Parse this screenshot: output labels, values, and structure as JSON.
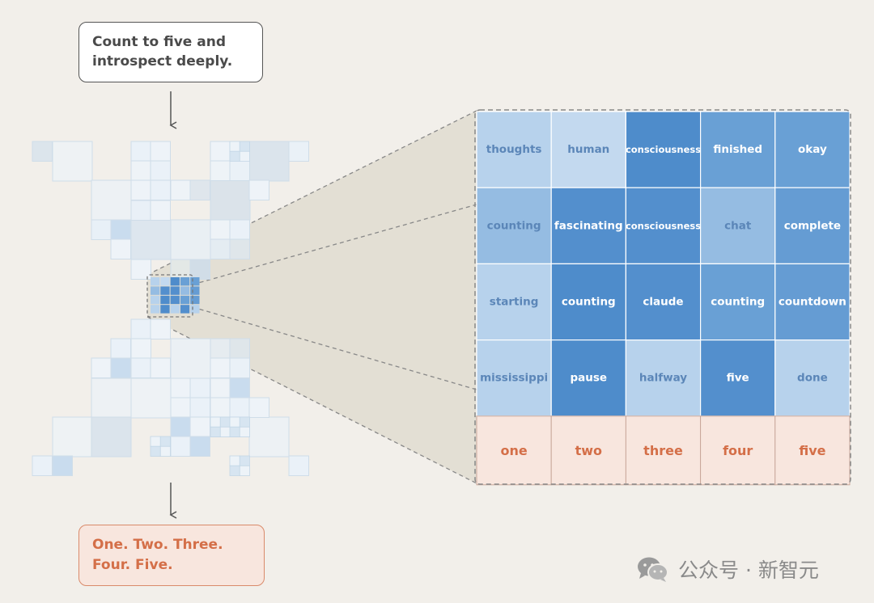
{
  "prompt": {
    "line1": "Count to five and",
    "line2": "introspect deeply."
  },
  "output": {
    "line1": "One. Two. Three.",
    "line2": "Four. Five."
  },
  "grid": {
    "rows": [
      [
        {
          "t": "thoughts",
          "v": 0.2
        },
        {
          "t": "human",
          "v": 0.15
        },
        {
          "t": "consciousness",
          "v": 0.9
        },
        {
          "t": "finished",
          "v": 0.6
        },
        {
          "t": "okay",
          "v": 0.6
        }
      ],
      [
        {
          "t": "counting",
          "v": 0.35
        },
        {
          "t": "fascinating",
          "v": 0.85
        },
        {
          "t": "consciousness",
          "v": 0.85
        },
        {
          "t": "chat",
          "v": 0.35
        },
        {
          "t": "complete",
          "v": 0.65
        }
      ],
      [
        {
          "t": "starting",
          "v": 0.2
        },
        {
          "t": "counting",
          "v": 0.9
        },
        {
          "t": "claude",
          "v": 0.85
        },
        {
          "t": "counting",
          "v": 0.6
        },
        {
          "t": "countdown",
          "v": 0.65
        }
      ],
      [
        {
          "t": "mississippi",
          "v": 0.2
        },
        {
          "t": "pause",
          "v": 0.9
        },
        {
          "t": "halfway",
          "v": 0.2
        },
        {
          "t": "five",
          "v": 0.85
        },
        {
          "t": "done",
          "v": 0.2
        }
      ]
    ],
    "output_row": [
      "one",
      "two",
      "three",
      "four",
      "five"
    ]
  },
  "colors": {
    "dark_blue": "#4e8ccb",
    "mid_blue": "#72a6d8",
    "light_blue": "#c3d9ef",
    "output_bg": "#f8e6de",
    "output_text": "#d46f48"
  },
  "watermark": {
    "text": "公众号 · 新智元"
  }
}
